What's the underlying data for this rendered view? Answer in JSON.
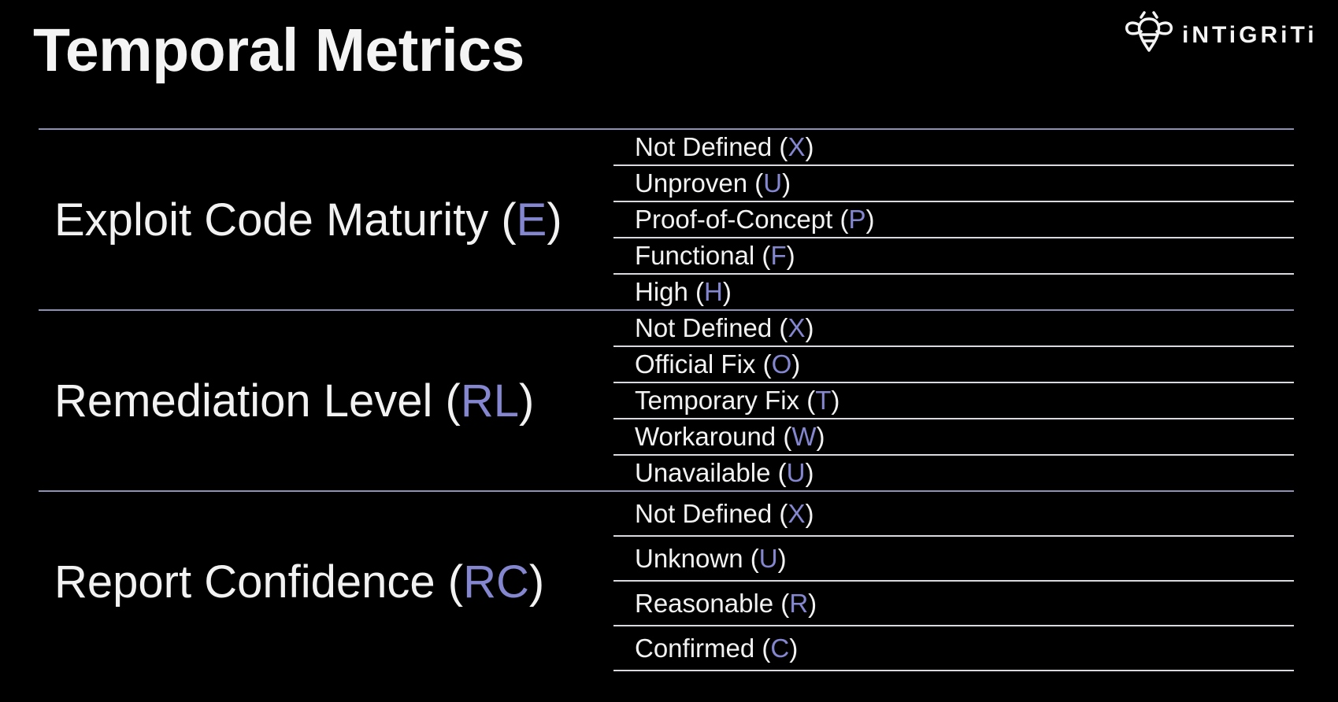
{
  "slide": {
    "title": "Temporal Metrics"
  },
  "logo": {
    "text": "iNTiGRiTi",
    "icon": "bee-icon"
  },
  "colors": {
    "background": "#000000",
    "text": "#f2f2f2",
    "code_accent": "#8487d0",
    "divider": "#8f90b8",
    "row_line": "#d9d9e0"
  },
  "groups": [
    {
      "name": "Exploit Code Maturity",
      "code": "E",
      "options": [
        {
          "name": "Not Defined",
          "code": "X"
        },
        {
          "name": "Unproven",
          "code": "U"
        },
        {
          "name": "Proof-of-Concept",
          "code": "P"
        },
        {
          "name": "Functional",
          "code": "F"
        },
        {
          "name": "High",
          "code": "H"
        }
      ]
    },
    {
      "name": "Remediation Level",
      "code": "RL",
      "options": [
        {
          "name": "Not Defined",
          "code": "X"
        },
        {
          "name": "Official Fix",
          "code": "O"
        },
        {
          "name": "Temporary Fix",
          "code": "T"
        },
        {
          "name": "Workaround",
          "code": "W"
        },
        {
          "name": "Unavailable",
          "code": "U"
        }
      ]
    },
    {
      "name": "Report Confidence",
      "code": "RC",
      "options": [
        {
          "name": "Not Defined",
          "code": "X"
        },
        {
          "name": "Unknown",
          "code": "U"
        },
        {
          "name": "Reasonable",
          "code": "R"
        },
        {
          "name": "Confirmed",
          "code": "C"
        }
      ]
    }
  ]
}
